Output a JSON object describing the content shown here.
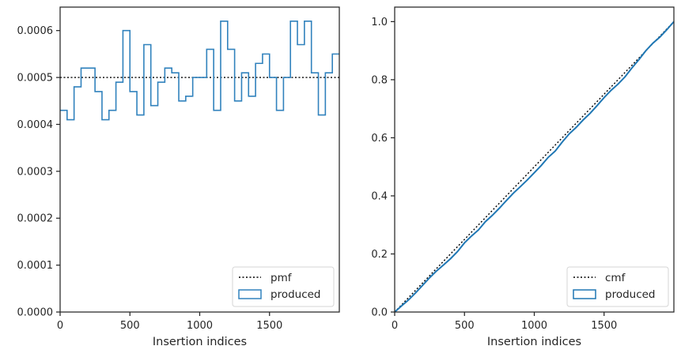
{
  "chart_data": [
    {
      "type": "step",
      "xlabel": "Insertion indices",
      "ylabel": "",
      "xlim": [
        0,
        2000
      ],
      "ylim": [
        0,
        0.00065
      ],
      "xticks": [
        0,
        500,
        1000,
        1500
      ],
      "xtick_labels": [
        "0",
        "500",
        "1000",
        "1500"
      ],
      "yticks": [
        0,
        0.0001,
        0.0002,
        0.0003,
        0.0004,
        0.0005,
        0.0006
      ],
      "ytick_labels": [
        "0.0000",
        "0.0001",
        "0.0002",
        "0.0003",
        "0.0004",
        "0.0005",
        "0.0006"
      ],
      "bin_width": 50,
      "pmf_value": 0.0005,
      "produced_values": [
        0.00043,
        0.00041,
        0.00048,
        0.00052,
        0.00052,
        0.00047,
        0.00041,
        0.00043,
        0.00049,
        0.0006,
        0.00047,
        0.00042,
        0.00057,
        0.00044,
        0.00049,
        0.00052,
        0.00051,
        0.00045,
        0.00046,
        0.0005,
        0.0005,
        0.00056,
        0.00043,
        0.00062,
        0.00056,
        0.00045,
        0.00051,
        0.00046,
        0.00053,
        0.00055,
        0.0005,
        0.00043,
        0.0005,
        0.00062,
        0.00057,
        0.00062,
        0.00051,
        0.00042,
        0.00051,
        0.00055
      ],
      "legend": {
        "location": "lower-right",
        "entries": [
          "pmf",
          "produced"
        ]
      },
      "colors": {
        "produced": "#3182bd",
        "pmf": "#000000"
      }
    },
    {
      "type": "line",
      "xlabel": "Insertion indices",
      "ylabel": "",
      "xlim": [
        0,
        2000
      ],
      "ylim": [
        0,
        1.05
      ],
      "xticks": [
        0,
        500,
        1000,
        1500
      ],
      "xtick_labels": [
        "0",
        "500",
        "1000",
        "1500"
      ],
      "yticks": [
        0,
        0.2,
        0.4,
        0.6,
        0.8,
        1.0
      ],
      "ytick_labels": [
        "0.0",
        "0.2",
        "0.4",
        "0.6",
        "0.8",
        "1.0"
      ],
      "cmf": {
        "x": [
          0,
          2000
        ],
        "y": [
          0,
          1.0
        ]
      },
      "legend": {
        "location": "lower-right",
        "entries": [
          "cmf",
          "produced"
        ]
      },
      "colors": {
        "produced": "#1f77b4",
        "cmf": "#000000"
      }
    }
  ]
}
